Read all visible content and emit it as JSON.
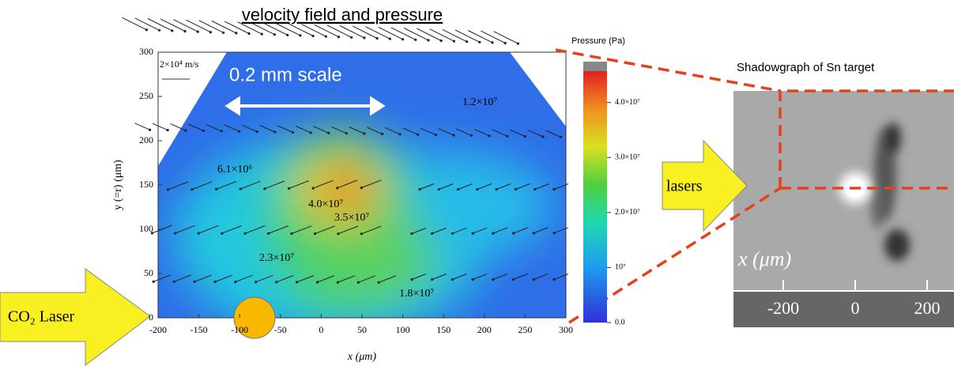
{
  "chart_data": {
    "type": "contour",
    "title": "velocity field and pressure",
    "x_label": "x (μm)",
    "y_label": "y (=r) (μm)",
    "xlim": [
      -200,
      300
    ],
    "ylim": [
      0,
      300
    ],
    "xticks": [
      -200,
      -150,
      -100,
      -50,
      0,
      50,
      100,
      150,
      200,
      250,
      300
    ],
    "yticks": [
      0,
      50,
      100,
      150,
      200,
      250,
      300
    ],
    "colorbar": {
      "label": "Pressure (Pa)",
      "lim": [
        0,
        45700000
      ],
      "ticks": [
        {
          "value": 0,
          "label": "0.0"
        },
        {
          "value": 10000000,
          "label": "10⁷"
        },
        {
          "value": 20000000,
          "label": "2.0×10⁷"
        },
        {
          "value": 30000000,
          "label": "3.0×10⁷"
        },
        {
          "value": 40000000,
          "label": "4.0×10⁷"
        }
      ]
    },
    "contour_labels": [
      {
        "value": 12000000,
        "label": "1.2×10⁷"
      },
      {
        "value": 6100000,
        "label": "6.1×10⁶"
      },
      {
        "value": 40000000,
        "label": "4.0×10⁷"
      },
      {
        "value": 35000000,
        "label": "3.5×10⁷"
      },
      {
        "value": 23000000,
        "label": "2.3×10⁷"
      },
      {
        "value": 18000000,
        "label": "1.8×10⁷"
      }
    ],
    "reference_arrow": "2×10⁴ m/s",
    "scale_label": "0.2 mm scale",
    "laser_label": "CO₂ Laser",
    "inset": {
      "title": "Shadowgraph of Sn target",
      "arrow_label": "lasers",
      "x_label": "x (μm)",
      "xticks": [
        -200,
        0,
        200
      ]
    }
  }
}
